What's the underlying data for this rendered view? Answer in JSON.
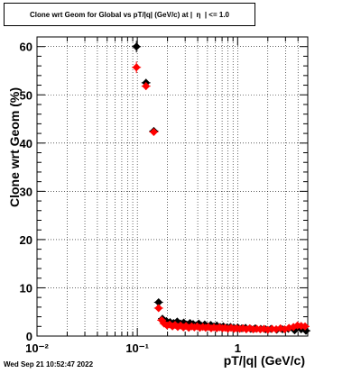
{
  "chart_data": {
    "type": "scatter",
    "title": "Clone wrt Geom for Global vs pT/|q| (GeV/c) at |  η  | <= 1.0",
    "xlabel": "pT/|q| (GeV/c)",
    "ylabel": "Clone wrt Geom (%)",
    "xscale": "log",
    "xlim": [
      0.01,
      5.0
    ],
    "ylim": [
      0,
      62
    ],
    "grid": true,
    "x_tick_labels": [
      "10⁻²",
      "10⁻¹",
      "1"
    ],
    "y_tick_labels": [
      "0",
      "10",
      "20",
      "30",
      "40",
      "50",
      "60"
    ],
    "series": [
      {
        "color": "#000000",
        "marker": "diamond",
        "points": [
          [
            0.098,
            60.0,
            1.2
          ],
          [
            0.122,
            52.5,
            0.8
          ],
          [
            0.146,
            42.5,
            0.7
          ],
          [
            0.163,
            7.0,
            0.4
          ],
          [
            0.178,
            3.6,
            0.3
          ],
          [
            0.195,
            3.1,
            0.3
          ],
          [
            0.212,
            2.9,
            0.3
          ],
          [
            0.23,
            2.7,
            0.3
          ],
          [
            0.25,
            3.0,
            0.3
          ],
          [
            0.27,
            2.6,
            0.3
          ],
          [
            0.29,
            2.8,
            0.3
          ],
          [
            0.31,
            2.4,
            0.3
          ],
          [
            0.335,
            2.7,
            0.3
          ],
          [
            0.36,
            2.5,
            0.3
          ],
          [
            0.385,
            2.2,
            0.3
          ],
          [
            0.41,
            2.6,
            0.3
          ],
          [
            0.44,
            2.1,
            0.3
          ],
          [
            0.47,
            2.4,
            0.3
          ],
          [
            0.5,
            2.0,
            0.3
          ],
          [
            0.54,
            2.3,
            0.3
          ],
          [
            0.58,
            2.0,
            0.3
          ],
          [
            0.62,
            2.2,
            0.3
          ],
          [
            0.67,
            1.9,
            0.3
          ],
          [
            0.72,
            2.0,
            0.3
          ],
          [
            0.78,
            1.8,
            0.3
          ],
          [
            0.85,
            1.9,
            0.3
          ],
          [
            0.92,
            1.7,
            0.3
          ],
          [
            1.0,
            1.8,
            0.3
          ],
          [
            1.1,
            1.6,
            0.3
          ],
          [
            1.2,
            1.7,
            0.3
          ],
          [
            1.35,
            1.5,
            0.3
          ],
          [
            1.5,
            1.6,
            0.3
          ],
          [
            1.7,
            1.5,
            0.3
          ],
          [
            1.9,
            1.4,
            0.3
          ],
          [
            2.15,
            1.5,
            0.3
          ],
          [
            2.45,
            1.3,
            0.3
          ],
          [
            2.8,
            1.4,
            0.3
          ],
          [
            3.2,
            1.5,
            0.3
          ],
          [
            3.7,
            1.2,
            0.3
          ],
          [
            4.3,
            1.4,
            0.3
          ],
          [
            4.8,
            1.1,
            0.3
          ]
        ]
      },
      {
        "color": "#ff0000",
        "marker": "diamond",
        "points": [
          [
            0.098,
            55.7,
            1.2
          ],
          [
            0.122,
            51.8,
            0.8
          ],
          [
            0.146,
            42.3,
            0.7
          ],
          [
            0.163,
            5.8,
            0.4
          ],
          [
            0.175,
            3.3,
            0.3
          ],
          [
            0.185,
            2.6,
            0.3
          ],
          [
            0.198,
            2.2,
            0.3
          ],
          [
            0.21,
            2.4,
            0.3
          ],
          [
            0.224,
            2.0,
            0.3
          ],
          [
            0.238,
            2.3,
            0.3
          ],
          [
            0.253,
            1.9,
            0.3
          ],
          [
            0.27,
            2.2,
            0.3
          ],
          [
            0.288,
            1.8,
            0.3
          ],
          [
            0.306,
            2.1,
            0.3
          ],
          [
            0.326,
            1.7,
            0.3
          ],
          [
            0.348,
            2.0,
            0.3
          ],
          [
            0.37,
            1.8,
            0.3
          ],
          [
            0.395,
            2.0,
            0.3
          ],
          [
            0.42,
            1.7,
            0.3
          ],
          [
            0.45,
            1.9,
            0.3
          ],
          [
            0.48,
            1.7,
            0.3
          ],
          [
            0.51,
            1.9,
            0.3
          ],
          [
            0.545,
            1.6,
            0.3
          ],
          [
            0.58,
            1.8,
            0.3
          ],
          [
            0.62,
            1.6,
            0.3
          ],
          [
            0.66,
            1.8,
            0.3
          ],
          [
            0.705,
            1.6,
            0.3
          ],
          [
            0.75,
            1.7,
            0.3
          ],
          [
            0.8,
            1.5,
            0.3
          ],
          [
            0.86,
            1.7,
            0.3
          ],
          [
            0.92,
            1.5,
            0.3
          ],
          [
            0.98,
            1.6,
            0.3
          ],
          [
            1.05,
            1.5,
            0.3
          ],
          [
            1.13,
            1.6,
            0.3
          ],
          [
            1.22,
            1.4,
            0.3
          ],
          [
            1.32,
            1.6,
            0.3
          ],
          [
            1.43,
            1.4,
            0.3
          ],
          [
            1.55,
            1.5,
            0.3
          ],
          [
            1.68,
            1.4,
            0.3
          ],
          [
            1.83,
            1.5,
            0.3
          ],
          [
            2.0,
            1.3,
            0.3
          ],
          [
            2.2,
            1.5,
            0.3
          ],
          [
            2.42,
            1.4,
            0.3
          ],
          [
            2.67,
            1.6,
            0.3
          ],
          [
            2.95,
            1.4,
            0.3
          ],
          [
            3.25,
            1.7,
            0.3
          ],
          [
            3.6,
            1.9,
            0.3
          ],
          [
            3.95,
            2.2,
            0.3
          ],
          [
            4.3,
            2.1,
            0.3
          ],
          [
            4.7,
            2.0,
            0.3
          ]
        ]
      }
    ]
  },
  "footer": "Wed Sep 21 10:52:47 2022"
}
